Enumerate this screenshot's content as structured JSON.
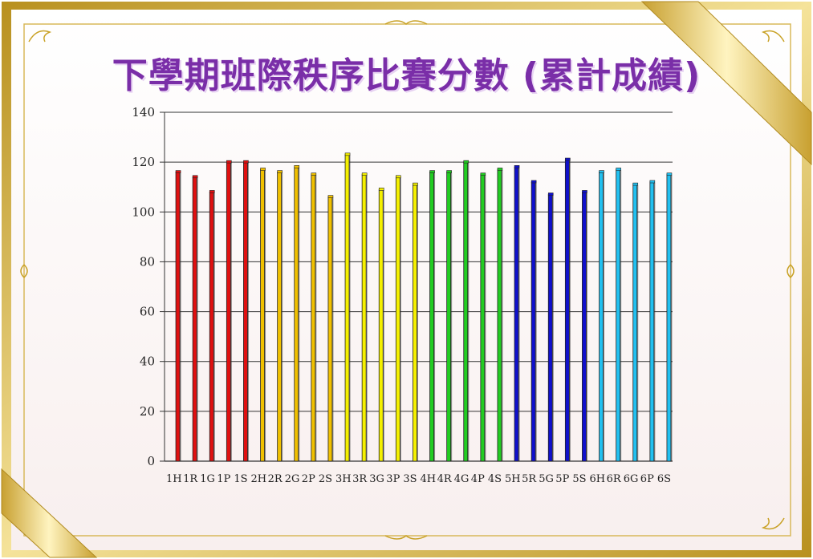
{
  "page": {
    "title": "下學期班際秩序比賽分數 (累計成績)"
  },
  "colors": {
    "title": "#7a2ea8",
    "frame_gold": "#c9a227",
    "frame_light": "#f3e2a0",
    "background": "#fdf9f6"
  },
  "chart_data": {
    "type": "bar",
    "title": "",
    "xlabel": "",
    "ylabel": "",
    "ylim": [
      0,
      140
    ],
    "yticks": [
      0,
      20,
      40,
      60,
      80,
      100,
      120,
      140
    ],
    "grid": true,
    "legend": "none",
    "categories": [
      "1H",
      "1R",
      "1G",
      "1P",
      "1S",
      "2H",
      "2R",
      "2G",
      "2P",
      "2S",
      "3H",
      "3R",
      "3G",
      "3P",
      "3S",
      "4H",
      "4R",
      "4G",
      "4P",
      "4S",
      "5H",
      "5R",
      "5G",
      "5P",
      "5S",
      "6H",
      "6R",
      "6G",
      "6P",
      "6S"
    ],
    "values": [
      116,
      114,
      108,
      120,
      120,
      117,
      116,
      118,
      115,
      106,
      123,
      115,
      109,
      114,
      111,
      116,
      116,
      120,
      115,
      117,
      118,
      112,
      107,
      121,
      108,
      116,
      117,
      111,
      112,
      115
    ],
    "bar_colors": [
      "#e01010",
      "#e01010",
      "#e01010",
      "#e01010",
      "#e01010",
      "#f0c000",
      "#f0c000",
      "#f0c000",
      "#f0c000",
      "#f0c000",
      "#f5f000",
      "#f5f000",
      "#f5f000",
      "#f5f000",
      "#f5f000",
      "#22cc22",
      "#22cc22",
      "#22cc22",
      "#22cc22",
      "#22cc22",
      "#1010cc",
      "#1010cc",
      "#1010cc",
      "#1010cc",
      "#1010cc",
      "#22c0f0",
      "#22c0f0",
      "#22c0f0",
      "#22c0f0",
      "#22c0f0"
    ]
  }
}
